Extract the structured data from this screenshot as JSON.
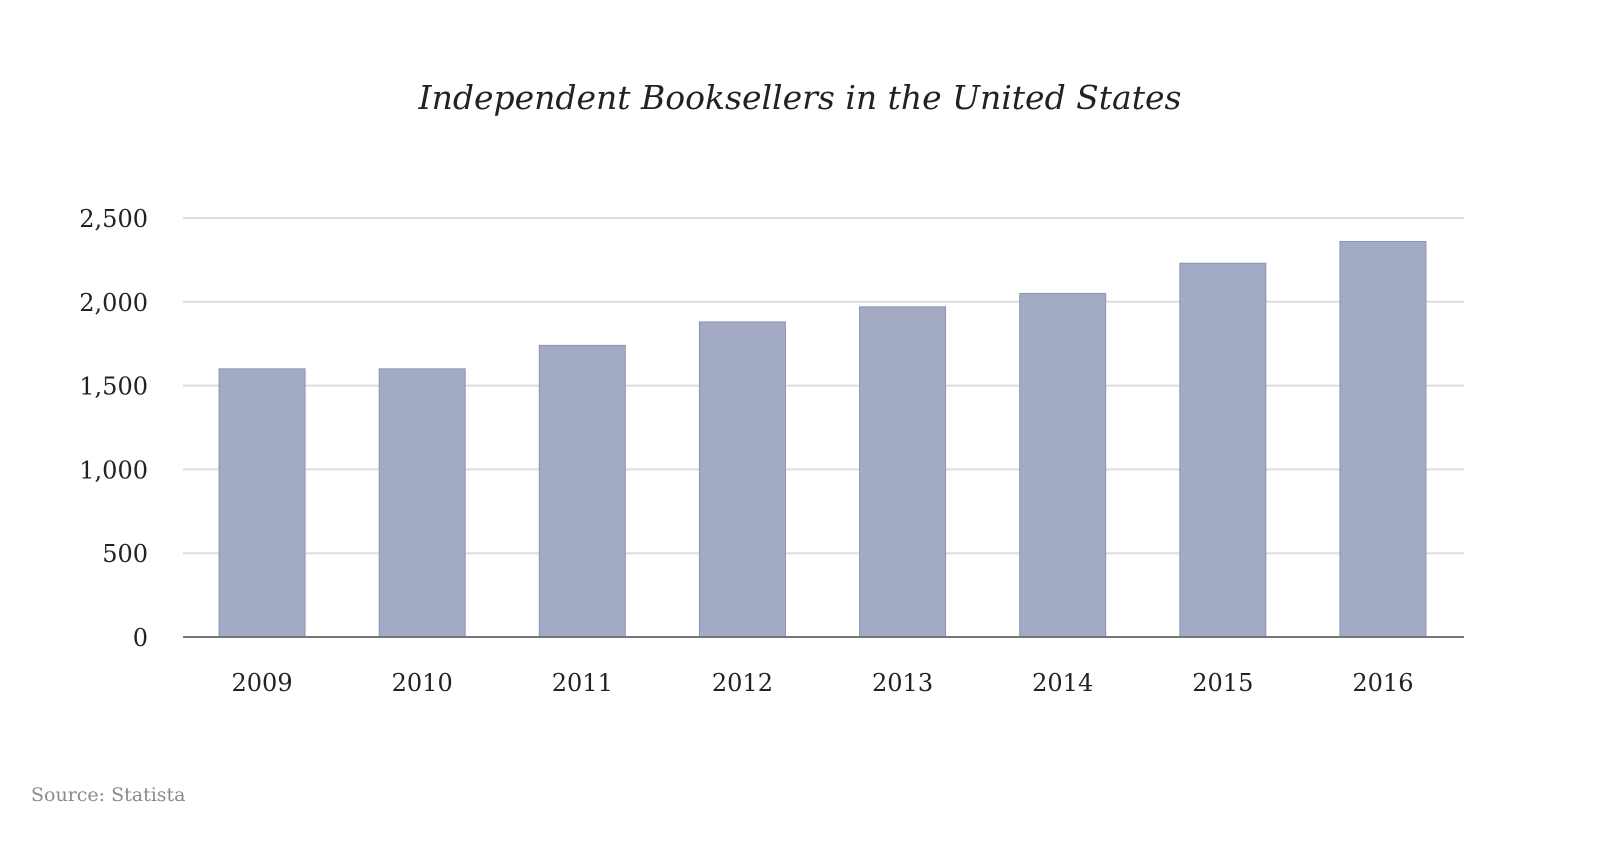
{
  "chart_data": {
    "type": "bar",
    "title": "Independent Booksellers in the United States",
    "categories": [
      "2009",
      "2010",
      "2011",
      "2012",
      "2013",
      "2014",
      "2015",
      "2016"
    ],
    "values": [
      1600,
      1600,
      1740,
      1880,
      1970,
      2050,
      2230,
      2360
    ],
    "xlabel": "",
    "ylabel": "",
    "ylim": [
      0,
      2500
    ],
    "yticks": [
      0,
      500,
      1000,
      1500,
      2000,
      2500
    ],
    "ytick_labels": [
      "0",
      "500",
      "1,000",
      "1,500",
      "2,000",
      "2,500"
    ],
    "grid": true,
    "legend": "none",
    "colors": {
      "bar": "#a3abc4",
      "bar_edge": "#8c95b0",
      "grid": "#dddddd",
      "axis": "#777777",
      "text": "#222222",
      "source_text": "#8a8a8a"
    }
  },
  "source": "Source: Statista"
}
